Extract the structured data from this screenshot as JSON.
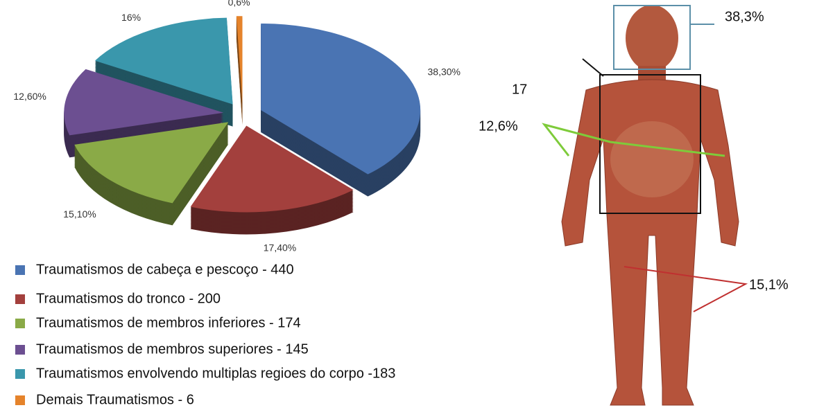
{
  "chart_data": {
    "type": "pie",
    "categories": [
      "Traumatismos de cabeça e pescoço - 440",
      "Traumatismos do tronco - 200",
      "Traumatismos de membros inferiores - 174",
      "Traumatismos de membros superiores - 145",
      "Traumatismos envolvendo multiplas regioes do corpo -183",
      "Demais Traumatismos - 6"
    ],
    "values": [
      38.3,
      17.4,
      15.1,
      12.6,
      16,
      0.6
    ],
    "value_labels": [
      "38,30%",
      "17,40%",
      "15,10%",
      "12,60%",
      "16%",
      "0,6%"
    ],
    "colors": [
      "#4a74b3",
      "#a3403d",
      "#8aaa47",
      "#6c4f91",
      "#3a97ac",
      "#e5832b"
    ],
    "annotations": [
      "38,3%",
      "17",
      "12,6%",
      "15,1%"
    ]
  }
}
